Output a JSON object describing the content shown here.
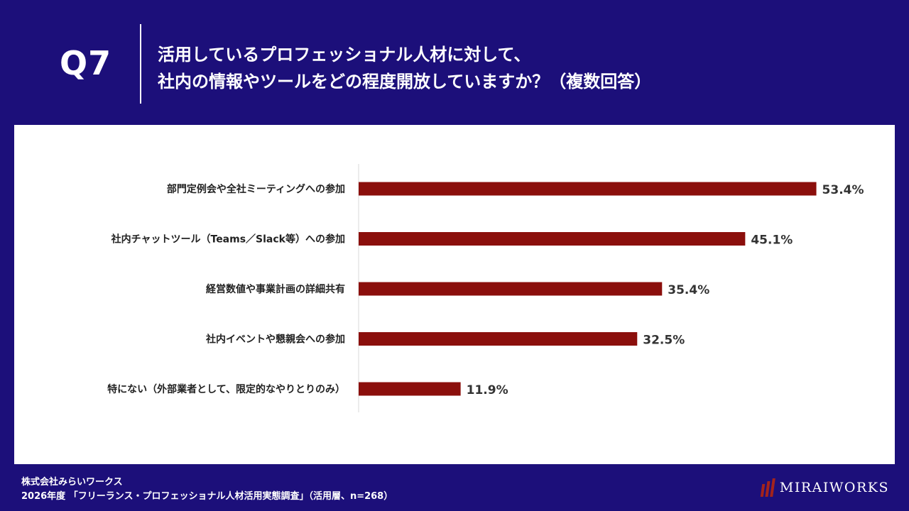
{
  "header": {
    "question_number": "Q7",
    "question_line1": "活用しているプロフェッショナル人材に対して、",
    "question_line2": "社内の情報やツールをどの程度開放していますか？（複数回答）"
  },
  "chart_data": {
    "type": "bar",
    "orientation": "horizontal",
    "categories": [
      "部門定例会や全社ミーティングへの参加",
      "社内チャットツール（Teams／Slack等）への参加",
      "経営数値や事業計画の詳細共有",
      "社内イベントや懇親会への参加",
      "特にない（外部業者として、限定的なやりとりのみ）"
    ],
    "values": [
      53.4,
      45.1,
      35.4,
      32.5,
      11.9
    ],
    "value_labels": [
      "53.4%",
      "45.1%",
      "35.4%",
      "32.5%",
      "11.9%"
    ],
    "xlim": [
      0,
      55
    ],
    "grid": false,
    "bar_color": "#8b0f0c"
  },
  "footer": {
    "company": "株式会社みらいワークス",
    "source": "2026年度 「フリーランス・プロフェッショナル人材活用実態調査」（活用層、n=268）"
  },
  "logo": {
    "text": "MIRAIWORKS"
  }
}
